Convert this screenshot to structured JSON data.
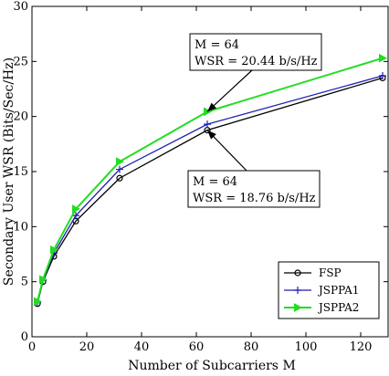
{
  "chart_data": {
    "type": "line",
    "xlabel": "Number of Subcarriers M",
    "ylabel": "Secondary User WSR (Bits/Sec/Hz)",
    "xlim": [
      0,
      130
    ],
    "ylim": [
      0,
      30
    ],
    "xticks": [
      "0",
      "20",
      "40",
      "60",
      "80",
      "100",
      "120"
    ],
    "yticks": [
      "0",
      "5",
      "10",
      "15",
      "20",
      "25",
      "30"
    ],
    "grid": false,
    "legend_position": "bottom-right",
    "x": [
      2,
      4,
      8,
      16,
      32,
      64,
      128
    ],
    "series": [
      {
        "name": "FSP",
        "marker": "circle",
        "color": "#000000",
        "values": [
          3.0,
          5.0,
          7.3,
          10.5,
          14.4,
          18.76,
          23.5
        ]
      },
      {
        "name": "JSPPA1",
        "marker": "plus",
        "color": "#1f1fb4",
        "values": [
          3.1,
          5.1,
          7.6,
          11.0,
          15.2,
          19.3,
          23.7
        ]
      },
      {
        "name": "JSPPA2",
        "marker": "triangle-right",
        "color": "#22dd22",
        "values": [
          3.2,
          5.2,
          7.9,
          11.6,
          15.9,
          20.44,
          25.3
        ]
      }
    ],
    "annotations": [
      {
        "line1": "M = 64",
        "line2": "WSR = 20.44 b/s/Hz",
        "x": 64,
        "y": 20.44
      },
      {
        "line1": "M = 64",
        "line2": "WSR = 18.76 b/s/Hz",
        "x": 64,
        "y": 18.76
      }
    ]
  }
}
